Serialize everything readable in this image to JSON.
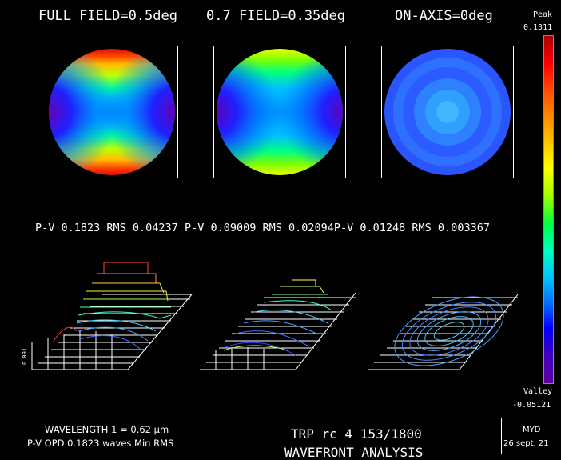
{
  "titles": {
    "full_field": "FULL FIELD=0.5deg",
    "field_07": "0.7 FIELD=0.35deg",
    "on_axis": "ON-AXIS=0deg"
  },
  "colorbar": {
    "peak_label": "Peak",
    "peak_value": "0.1311",
    "valley_label": "Valley",
    "valley_value": "-0.05121"
  },
  "stats": {
    "full": "P-V 0.1823 RMS 0.04237",
    "field_07": "P-V 0.09009 RMS 0.02094",
    "on_axis": "P-V 0.01248 RMS 0.003367"
  },
  "plot3d": {
    "scale_label": "0.091"
  },
  "footer": {
    "wavelength": "WAVELENGTH 1 = 0.62 µm",
    "opd": "P-V OPD 0.1823 waves Min RMS",
    "lens_name": "TRP rc 4  153/1800",
    "analysis": "WAVEFRONT ANALYSIS",
    "author": "MYD",
    "date": "26 sept. 21"
  },
  "colors": {
    "background": "#000000",
    "frame": "#ffffff"
  }
}
